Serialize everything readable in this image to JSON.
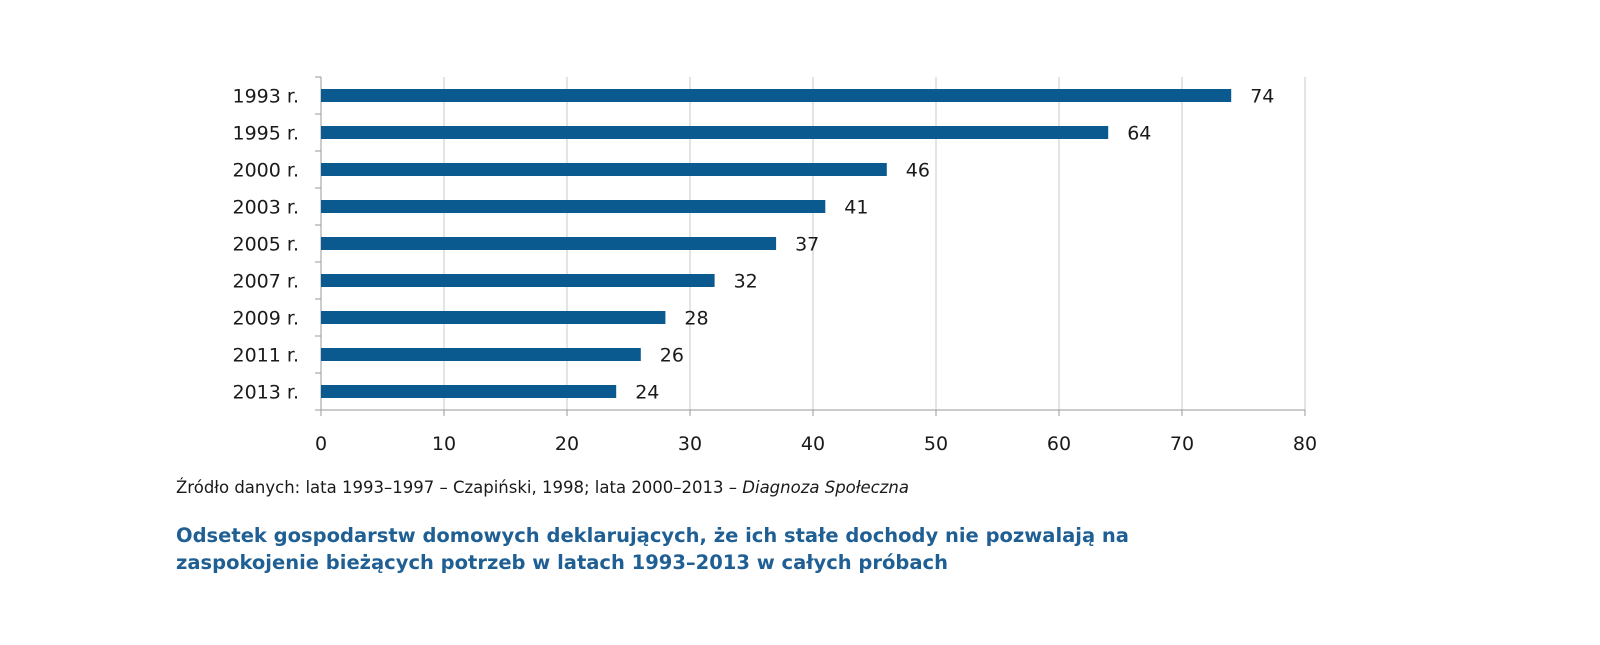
{
  "chart_data": {
    "type": "bar",
    "orientation": "horizontal",
    "categories": [
      "1993 r.",
      "1995 r.",
      "2000 r.",
      "2003 r.",
      "2005 r.",
      "2007 r.",
      "2009 r.",
      "2011 r.",
      "2013 r."
    ],
    "values": [
      74,
      64,
      46,
      41,
      37,
      32,
      28,
      26,
      24
    ],
    "data_labels": [
      "74",
      "64",
      "46",
      "41",
      "37",
      "32",
      "28",
      "26",
      "24"
    ],
    "xlim": [
      0,
      80
    ],
    "xticks": [
      0,
      10,
      20,
      30,
      40,
      50,
      60,
      70,
      80
    ],
    "grid": true,
    "bar_color": "#0b5a8f",
    "grid_color": "#c8c8c8"
  },
  "source": {
    "text": "Źródło danych: lata 1993–1997 – Czapiński, 1998; lata 2000–2013 – ",
    "italic": "Diagnoza Społeczna"
  },
  "caption": "Odsetek gospodarstw domowych deklarujących, że ich stałe dochody nie pozwalają na zaspokojenie bieżących potrzeb w latach 1993–2013 w całych próbach",
  "colors": {
    "caption": "#1f5f94"
  }
}
